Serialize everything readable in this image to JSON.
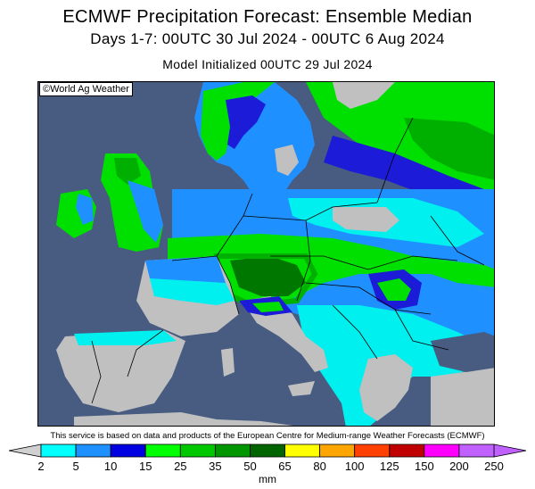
{
  "header": {
    "title": "ECMWF Precipitation Forecast: Ensemble Median",
    "period": "Days 1-7: 00UTC 30 Jul 2024 - 00UTC 6 Aug 2024",
    "init": "Model Initialized 00UTC 29 Jul 2024"
  },
  "map": {
    "copyright": "©World Ag Weather",
    "colors": {
      "ocean": "#475c80",
      "land_dry": "#c0c0c0",
      "light_blue": "#00f0f0",
      "medium_blue": "#1e90ff",
      "dark_blue": "#1c1cd8",
      "green": "#00e000",
      "mid_green": "#00b000",
      "dark_green": "#007800"
    }
  },
  "footer": {
    "credit": "This service is based on data and products of the European Centre for Medium-range Weather Forecasts (ECMWF)",
    "unit": "mm"
  },
  "legend": {
    "labels": [
      "2",
      "5",
      "10",
      "15",
      "25",
      "35",
      "50",
      "65",
      "80",
      "100",
      "125",
      "150",
      "200",
      "250"
    ],
    "colors": [
      "#00ffff",
      "#1e90ff",
      "#0000e0",
      "#00ff00",
      "#00c800",
      "#009600",
      "#006400",
      "#ffff00",
      "#ffa500",
      "#ff4000",
      "#c00000",
      "#ff00ff",
      "#c060ff"
    ]
  }
}
